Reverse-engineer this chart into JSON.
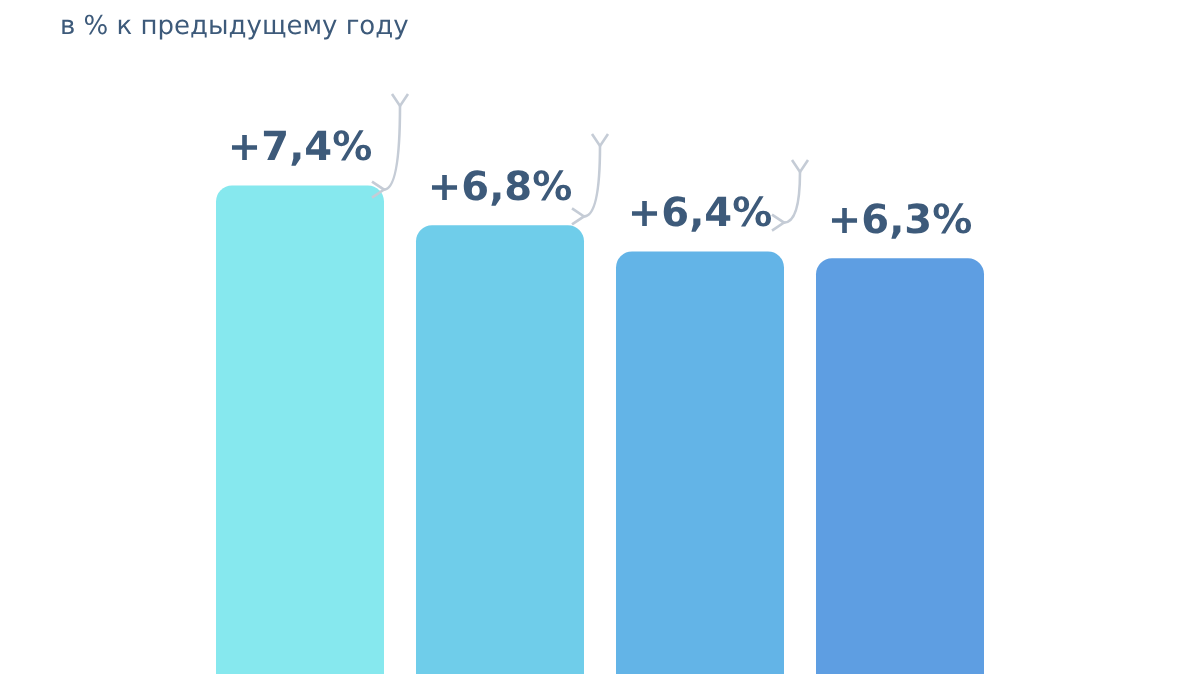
{
  "chart_data": {
    "type": "bar",
    "subtitle": "в % к предыдущему году",
    "categories": [
      null,
      null,
      null,
      null
    ],
    "values": [
      7.4,
      6.8,
      6.4,
      6.3
    ],
    "value_labels": [
      "+7,4%",
      "+6,8%",
      "+6,4%",
      "+6,3%"
    ],
    "colors": [
      "#86e8ee",
      "#6fcdea",
      "#63b4e7",
      "#5e9ee2"
    ],
    "legend": false
  }
}
